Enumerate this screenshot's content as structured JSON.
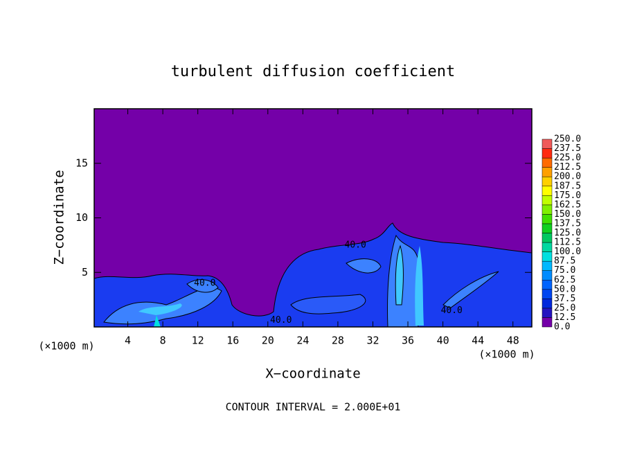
{
  "chart_data": {
    "type": "contour",
    "title": "turbulent diffusion coefficient",
    "xlabel": "X−coordinate",
    "ylabel": "Z−coordinate",
    "x_unit": "(×1000 m)",
    "y_unit": "(×1000 m)",
    "footer": "CONTOUR INTERVAL = 2.000E+01",
    "xlim": [
      0,
      50
    ],
    "ylim": [
      0,
      20
    ],
    "xticks": [
      4,
      8,
      12,
      16,
      20,
      24,
      28,
      32,
      36,
      40,
      44,
      48
    ],
    "yticks": [
      5,
      10,
      15
    ],
    "colorbar": {
      "levels": [
        {
          "value": 0,
          "label": "0.0"
        },
        {
          "value": 12.5,
          "label": "12.5"
        },
        {
          "value": 25,
          "label": "25.0"
        },
        {
          "value": 37.5,
          "label": "37.5"
        },
        {
          "value": 50,
          "label": "50.0"
        },
        {
          "value": 62.5,
          "label": "62.5"
        },
        {
          "value": 75,
          "label": "75.0"
        },
        {
          "value": 87.5,
          "label": "87.5"
        },
        {
          "value": 100,
          "label": "100.0"
        },
        {
          "value": 112.5,
          "label": "112.5"
        },
        {
          "value": 125,
          "label": "125.0"
        },
        {
          "value": 137.5,
          "label": "137.5"
        },
        {
          "value": 150,
          "label": "150.0"
        },
        {
          "value": 162.5,
          "label": "162.5"
        },
        {
          "value": 175,
          "label": "175.0"
        },
        {
          "value": 187.5,
          "label": "187.5"
        },
        {
          "value": 200,
          "label": "200.0"
        },
        {
          "value": 212.5,
          "label": "212.5"
        },
        {
          "value": 225,
          "label": "225.0"
        },
        {
          "value": 237.5,
          "label": "237.5"
        },
        {
          "value": 250,
          "label": "250.0"
        }
      ],
      "colors": [
        "#7400a8",
        "#2414c0",
        "#0028dc",
        "#0046f0",
        "#0064ff",
        "#008cff",
        "#00b8ff",
        "#00e0e0",
        "#00d8a0",
        "#00c860",
        "#10d020",
        "#40e000",
        "#80f000",
        "#c0ff00",
        "#ffff00",
        "#ffd000",
        "#ffa000",
        "#ff6a00",
        "#ff2a10",
        "#f05a5a"
      ]
    },
    "annotations": [
      {
        "text": "40.0",
        "x": 30,
        "y": 7.5
      },
      {
        "text": "40.0",
        "x": 21.5,
        "y": 0.6
      },
      {
        "text": "40.0",
        "x": 41,
        "y": 1.5
      },
      {
        "text": "40.0",
        "x": 12.8,
        "y": 4
      }
    ]
  }
}
